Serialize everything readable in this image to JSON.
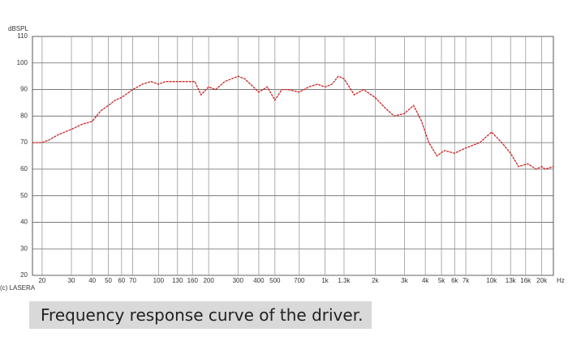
{
  "chart_data": {
    "type": "line",
    "y_label": "dBSPL",
    "x_unit": "Hz",
    "credit": "(c) LASERA",
    "caption": "Frequency response curve of the driver.",
    "xscale": "log",
    "grid": true,
    "xlim": [
      17.5,
      23500
    ],
    "ylim": [
      20,
      110
    ],
    "yticks": [
      20,
      30,
      40,
      50,
      60,
      70,
      80,
      90,
      100,
      110
    ],
    "xticks": [
      20,
      30,
      40,
      50,
      60,
      70,
      100,
      130,
      160,
      200,
      300,
      400,
      500,
      700,
      {
        "value": 1000,
        "label": "1k"
      },
      {
        "value": 1300,
        "label": "1.3k"
      },
      {
        "value": 2000,
        "label": "2k"
      },
      {
        "value": 3000,
        "label": "3k"
      },
      {
        "value": 4000,
        "label": "4k"
      },
      {
        "value": 5000,
        "label": "5k"
      },
      {
        "value": 6000,
        "label": "6k"
      },
      {
        "value": 7000,
        "label": "7k"
      },
      {
        "value": 10000,
        "label": "10k"
      },
      {
        "value": 13000,
        "label": "13k"
      },
      {
        "value": 16000,
        "label": "16k"
      },
      {
        "value": 20000,
        "label": "20k"
      }
    ],
    "x": [
      17.5,
      20,
      22,
      25,
      30,
      35,
      40,
      45,
      50,
      55,
      60,
      70,
      80,
      90,
      100,
      110,
      130,
      150,
      165,
      180,
      200,
      220,
      250,
      300,
      330,
      400,
      450,
      500,
      550,
      600,
      700,
      800,
      900,
      1000,
      1100,
      1200,
      1300,
      1500,
      1700,
      2000,
      2300,
      2600,
      3000,
      3400,
      3800,
      4200,
      4700,
      5200,
      6000,
      7000,
      8500,
      10000,
      11500,
      13000,
      14500,
      16500,
      18500,
      20000,
      21000,
      23500
    ],
    "series": [
      {
        "color": "#cc2222",
        "values": [
          70,
          70,
          71,
          73,
          75,
          77,
          78,
          82,
          84,
          86,
          87,
          90,
          92,
          93,
          92,
          93,
          93,
          93,
          93,
          88,
          91,
          90,
          93,
          95,
          94,
          89,
          91,
          86,
          90,
          90,
          89,
          91,
          92,
          91,
          92,
          95,
          94,
          88,
          90,
          87,
          83,
          80,
          81,
          84,
          78,
          70,
          65,
          67,
          66,
          68,
          70,
          74,
          70,
          66,
          61,
          62,
          60,
          61,
          60,
          61
        ]
      }
    ]
  }
}
